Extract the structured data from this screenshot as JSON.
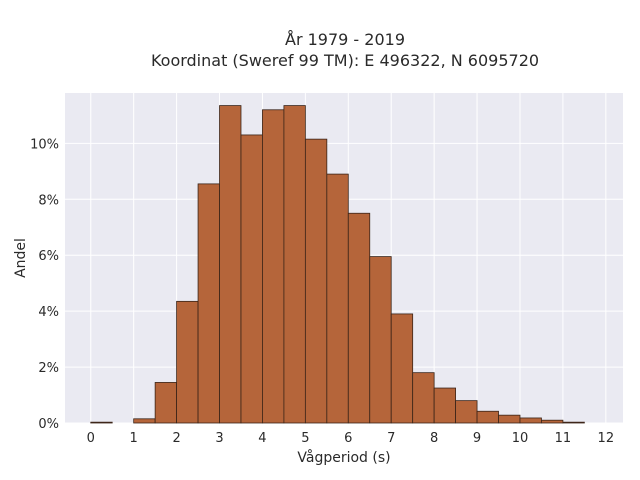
{
  "chart_data": {
    "type": "bar",
    "title": "År 1979 - 2019",
    "subtitle": "Koordinat (Sweref 99 TM): E 496322, N 6095720",
    "xlabel": "Vågperiod (s)",
    "ylabel": "Andel",
    "x_ticks": [
      "0",
      "1",
      "2",
      "3",
      "4",
      "5",
      "6",
      "7",
      "8",
      "9",
      "10",
      "11",
      "12"
    ],
    "y_ticks": [
      "0%",
      "2%",
      "4%",
      "6%",
      "8%",
      "10%"
    ],
    "xlim": [
      -0.6,
      12.4
    ],
    "ylim": [
      0,
      11.8
    ],
    "grid": true,
    "legend": "none",
    "bin_width": 0.5,
    "bins": [
      {
        "start": 0.0,
        "value": 0.03
      },
      {
        "start": 0.5,
        "value": 0.0
      },
      {
        "start": 1.0,
        "value": 0.15
      },
      {
        "start": 1.5,
        "value": 1.45
      },
      {
        "start": 2.0,
        "value": 4.35
      },
      {
        "start": 2.5,
        "value": 8.55
      },
      {
        "start": 3.0,
        "value": 11.35
      },
      {
        "start": 3.5,
        "value": 10.3
      },
      {
        "start": 4.0,
        "value": 11.2
      },
      {
        "start": 4.5,
        "value": 11.35
      },
      {
        "start": 5.0,
        "value": 10.15
      },
      {
        "start": 5.5,
        "value": 8.9
      },
      {
        "start": 6.0,
        "value": 7.5
      },
      {
        "start": 6.5,
        "value": 5.95
      },
      {
        "start": 7.0,
        "value": 3.9
      },
      {
        "start": 7.5,
        "value": 1.8
      },
      {
        "start": 8.0,
        "value": 1.25
      },
      {
        "start": 8.5,
        "value": 0.8
      },
      {
        "start": 9.0,
        "value": 0.42
      },
      {
        "start": 9.5,
        "value": 0.28
      },
      {
        "start": 10.0,
        "value": 0.18
      },
      {
        "start": 10.5,
        "value": 0.1
      },
      {
        "start": 11.0,
        "value": 0.03
      }
    ],
    "colors": {
      "bar_fill": "#b5653a",
      "bar_edge": "#3a2418",
      "plot_bg": "#eaeaf2",
      "grid": "#ffffff"
    }
  }
}
